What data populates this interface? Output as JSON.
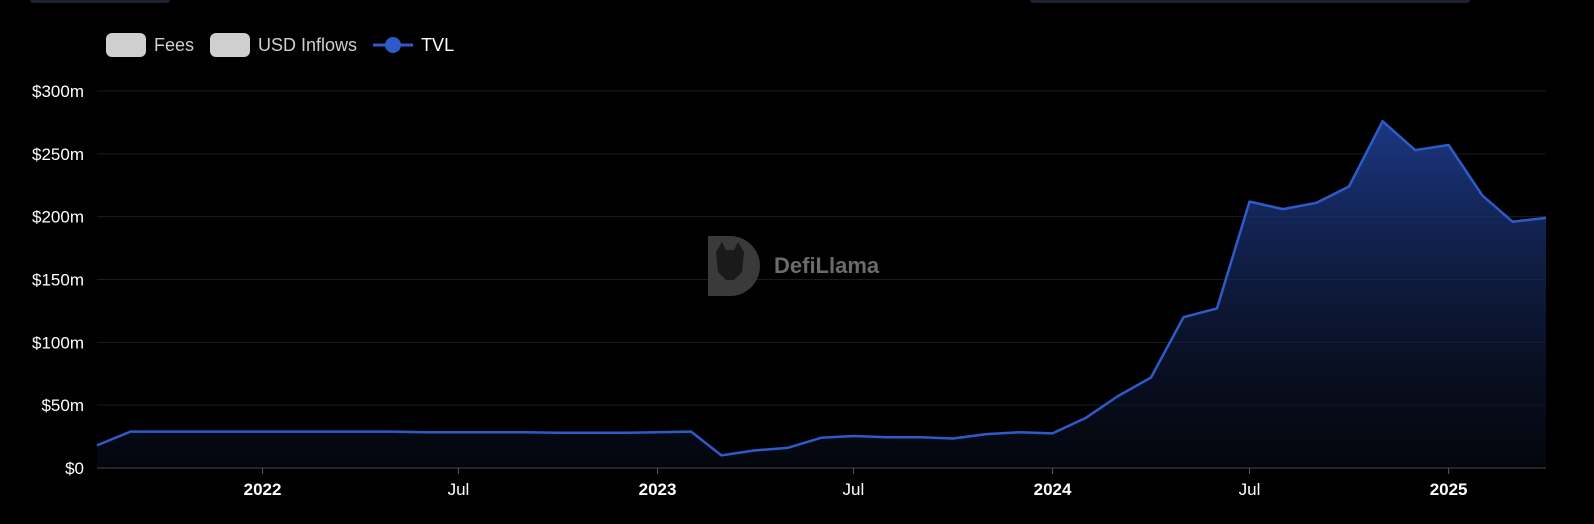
{
  "legend": {
    "items": [
      {
        "label": "Fees",
        "kind": "bar",
        "color": "#cfcfcf",
        "active": false
      },
      {
        "label": "USD Inflows",
        "kind": "bar",
        "color": "#cfcfcf",
        "active": false
      },
      {
        "label": "TVL",
        "kind": "line",
        "color": "#2f5bc8",
        "active": true
      }
    ]
  },
  "watermark": {
    "text": "DefiLlama",
    "icon": "llama-logo-icon"
  },
  "colors": {
    "background": "#000000",
    "line": "#2f5bc8",
    "area_top": "#1d3a8a",
    "grid": "#1b1b1b"
  },
  "chart_data": {
    "type": "area",
    "series": [
      {
        "name": "TVL",
        "unit": "USD millions",
        "x": [
          "2021-08-01",
          "2021-09-01",
          "2021-10-01",
          "2021-11-01",
          "2021-12-01",
          "2022-01-01",
          "2022-02-01",
          "2022-03-01",
          "2022-04-01",
          "2022-05-01",
          "2022-06-01",
          "2022-07-01",
          "2022-08-01",
          "2022-09-01",
          "2022-10-01",
          "2022-11-01",
          "2022-12-01",
          "2023-01-01",
          "2023-02-01",
          "2023-03-01",
          "2023-04-01",
          "2023-05-01",
          "2023-06-01",
          "2023-07-01",
          "2023-08-01",
          "2023-09-01",
          "2023-10-01",
          "2023-11-01",
          "2023-12-01",
          "2024-01-01",
          "2024-02-01",
          "2024-03-01",
          "2024-04-01",
          "2024-05-01",
          "2024-06-01",
          "2024-07-01",
          "2024-08-01",
          "2024-09-01",
          "2024-10-01",
          "2024-11-01",
          "2024-12-01",
          "2025-01-01",
          "2025-02-01",
          "2025-03-01",
          "2025-04-01"
        ],
        "values": [
          18,
          29,
          29,
          29,
          29,
          29,
          29,
          29,
          29,
          29,
          28.5,
          28.5,
          28.5,
          28.5,
          28,
          28,
          28,
          28.5,
          29,
          10,
          14,
          16,
          24,
          25.5,
          24.5,
          24.5,
          23.5,
          27,
          28.5,
          27.5,
          40,
          57,
          72,
          120,
          127,
          212,
          206,
          211,
          224,
          276,
          253,
          257,
          217,
          196,
          199
        ]
      }
    ],
    "y_ticks": [
      "$0",
      "$50m",
      "$100m",
      "$150m",
      "$200m",
      "$250m",
      "$300m"
    ],
    "y_tick_values": [
      0,
      50,
      100,
      150,
      200,
      250,
      300
    ],
    "ylim": [
      0,
      300
    ],
    "x_ticks": [
      {
        "date": "2022-01-01",
        "label": "2022",
        "major": true
      },
      {
        "date": "2022-07-01",
        "label": "Jul",
        "major": false
      },
      {
        "date": "2023-01-01",
        "label": "2023",
        "major": true
      },
      {
        "date": "2023-07-01",
        "label": "Jul",
        "major": false
      },
      {
        "date": "2024-01-01",
        "label": "2024",
        "major": true
      },
      {
        "date": "2024-07-01",
        "label": "Jul",
        "major": false
      },
      {
        "date": "2025-01-01",
        "label": "2025",
        "major": true
      }
    ],
    "xlim": [
      "2021-08-01",
      "2025-04-01"
    ],
    "grid": true,
    "legend_position": "top-left"
  }
}
